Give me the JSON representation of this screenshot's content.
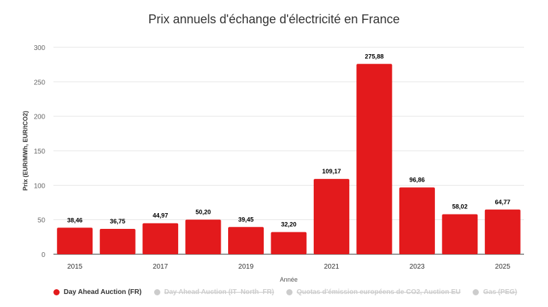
{
  "chart_data": {
    "type": "bar",
    "title": "Prix annuels d'échange d'électricité en France",
    "xlabel": "Année",
    "ylabel": "Prix (EUR/MWh, EUR/tCO2)",
    "ylim": [
      0,
      300
    ],
    "yticks": [
      "0",
      "50",
      "100",
      "150",
      "200",
      "250",
      "300"
    ],
    "grid": true,
    "categories": [
      "2015",
      "2016",
      "2017",
      "2018",
      "2019",
      "2020",
      "2021",
      "2022",
      "2023",
      "2024",
      "2025"
    ],
    "xtick_labels": [
      "2015",
      "",
      "2017",
      "",
      "2019",
      "",
      "2021",
      "",
      "2023",
      "",
      "2025"
    ],
    "series": [
      {
        "name": "Day Ahead Auction (FR)",
        "color": "#e31a1c",
        "values": [
          38.46,
          36.75,
          44.97,
          50.2,
          39.45,
          32.2,
          109.17,
          275.88,
          96.86,
          58.02,
          64.77
        ],
        "labels": [
          "38,46",
          "36,75",
          "44,97",
          "50,20",
          "39,45",
          "32,20",
          "109,17",
          "275,88",
          "96,86",
          "58,02",
          "64,77"
        ]
      }
    ],
    "legend": {
      "placement": "bottom-left",
      "items": [
        {
          "label": "Day Ahead Auction (FR)",
          "active": true,
          "color": "#e31a1c"
        },
        {
          "label": "Day Ahead Auction (IT–North–FR)",
          "active": false,
          "color": "#cccccc"
        },
        {
          "label": "Quotas d'émission européens de CO2, Auction EU",
          "active": false,
          "color": "#cccccc"
        },
        {
          "label": "Gas (PEG)",
          "active": false,
          "color": "#cccccc"
        }
      ]
    }
  }
}
